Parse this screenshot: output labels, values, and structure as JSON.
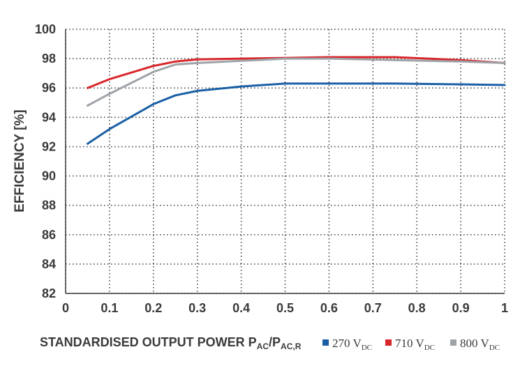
{
  "chart_data": {
    "type": "line",
    "xlabel": {
      "main": "STANDARDISED OUTPUT POWER P",
      "sub1": "AC",
      "slash": "/P",
      "sub2": "AC,R"
    },
    "ylabel": "EFFICIENCY [%]",
    "xlim": [
      0,
      1
    ],
    "ylim": [
      82,
      100
    ],
    "xticks": [
      "0",
      "0.1",
      "0.2",
      "0.3",
      "0.4",
      "0.5",
      "0.6",
      "0.7",
      "0.8",
      "0.9",
      "1"
    ],
    "yticks": [
      "82",
      "84",
      "86",
      "88",
      "90",
      "92",
      "94",
      "96",
      "98",
      "100"
    ],
    "grid": true,
    "legend_position": "bottom-right",
    "series": [
      {
        "name": "270 V",
        "sub": "DC",
        "color": "#1a5fa5",
        "x": [
          0.05,
          0.1,
          0.2,
          0.25,
          0.3,
          0.4,
          0.5,
          0.6,
          0.75,
          0.9,
          1.0
        ],
        "y": [
          92.2,
          93.2,
          94.9,
          95.5,
          95.8,
          96.1,
          96.3,
          96.3,
          96.3,
          96.25,
          96.2
        ]
      },
      {
        "name": "710 V",
        "sub": "DC",
        "color": "#d9262b",
        "x": [
          0.05,
          0.1,
          0.2,
          0.25,
          0.3,
          0.4,
          0.5,
          0.6,
          0.75,
          0.9,
          1.0
        ],
        "y": [
          96.0,
          96.6,
          97.5,
          97.8,
          97.95,
          98.0,
          98.05,
          98.1,
          98.1,
          97.9,
          97.7
        ]
      },
      {
        "name": "800 V",
        "sub": "DC",
        "color": "#9ea3a8",
        "x": [
          0.05,
          0.1,
          0.2,
          0.25,
          0.3,
          0.4,
          0.5,
          0.6,
          0.75,
          0.9,
          1.0
        ],
        "y": [
          94.8,
          95.6,
          97.1,
          97.6,
          97.7,
          97.85,
          98.0,
          98.0,
          97.9,
          97.8,
          97.7
        ]
      }
    ]
  }
}
